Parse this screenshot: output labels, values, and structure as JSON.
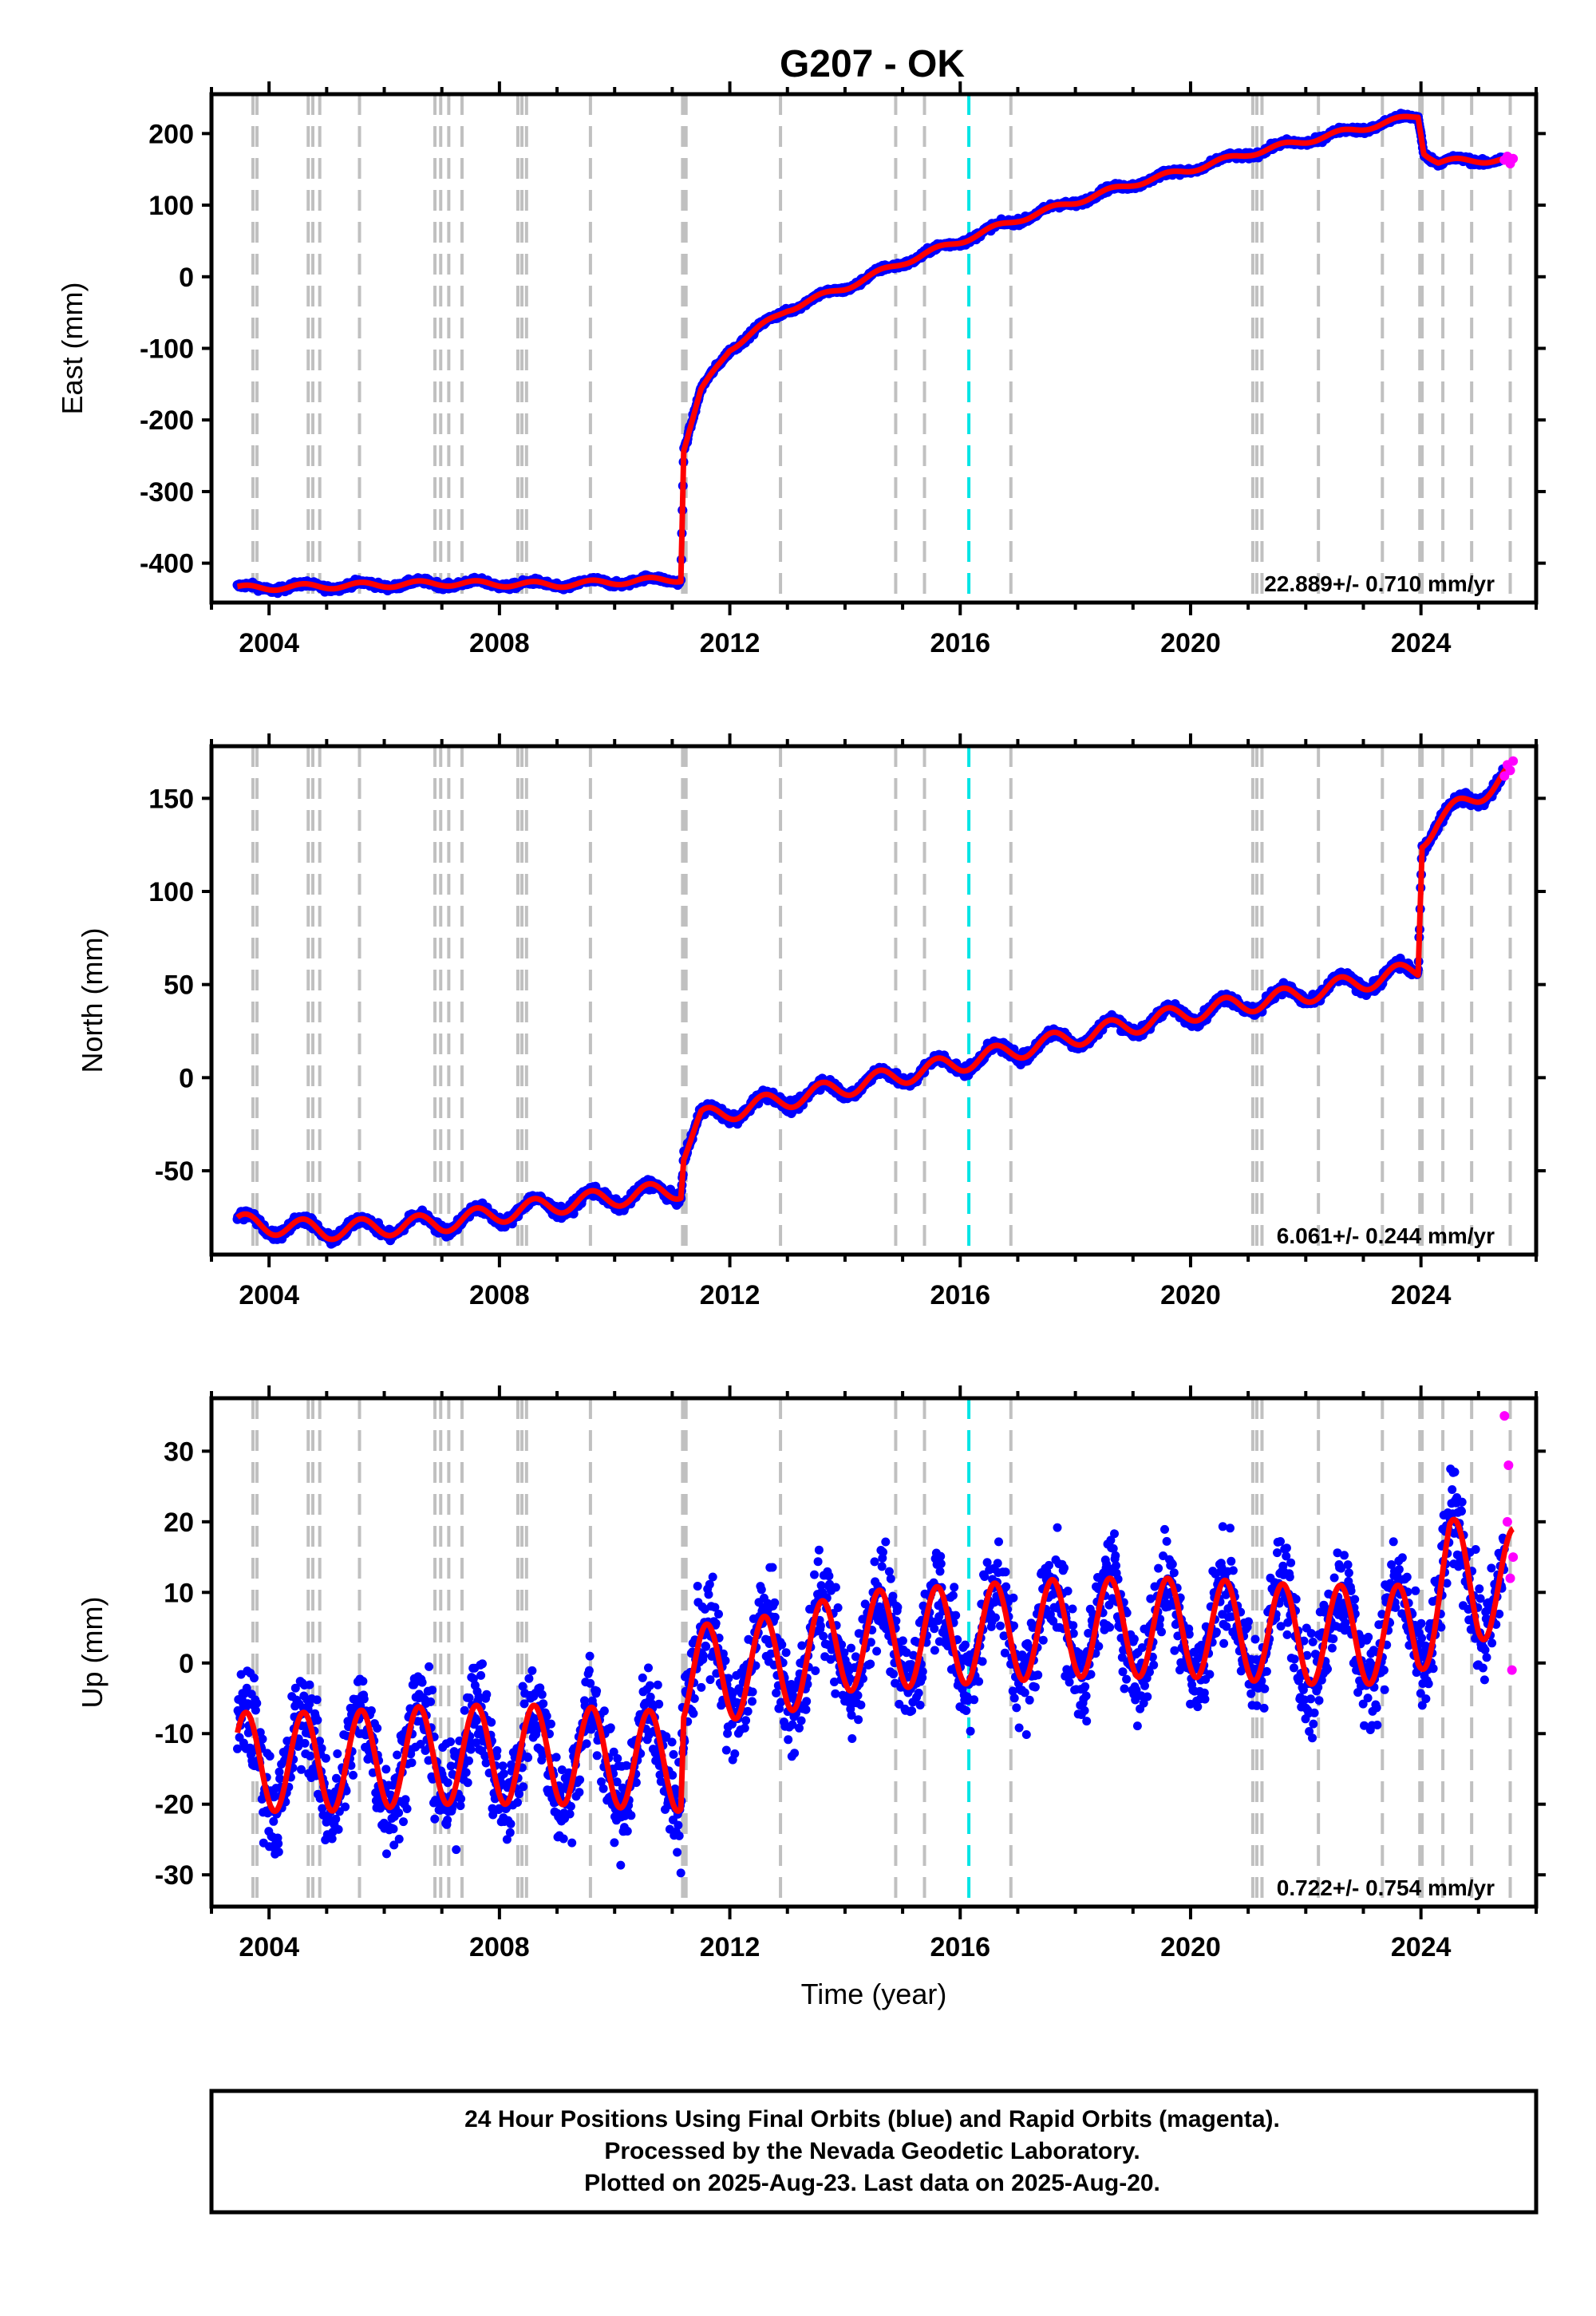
{
  "title": "G207 - OK",
  "footer": [
    "24 Hour Positions Using Final Orbits (blue) and Rapid Orbits (magenta).",
    "Processed by the Nevada Geodetic Laboratory.",
    "Plotted on 2025-Aug-23. Last data on 2025-Aug-20."
  ],
  "colors": {
    "final_orbits": "#0000ff",
    "rapid_orbits": "#ff00ff",
    "model": "#ff0000",
    "equipment_change": "#c0c0c0",
    "marker_2016": "#00e5e5"
  },
  "chart_data": [
    {
      "type": "scatter",
      "name": "east",
      "ylabel": "East (mm)",
      "xlabel": "",
      "xlim": [
        2003.0,
        2026.0
      ],
      "ylim": [
        -455,
        255
      ],
      "yticks": [
        -400,
        -300,
        -200,
        -100,
        0,
        100,
        200
      ],
      "xticks": [
        2004,
        2008,
        2012,
        2016,
        2020,
        2024
      ],
      "rate_label": "22.889+/- 0.710 mm/yr",
      "model_x": [
        2003.5,
        2005.0,
        2007.0,
        2009.0,
        2011.15,
        2011.2,
        2011.5,
        2012.0,
        2013.0,
        2014.0,
        2015.0,
        2016.0,
        2017.0,
        2018.0,
        2019.0,
        2020.0,
        2021.0,
        2022.0,
        2023.0,
        2023.95,
        2024.05,
        2024.3,
        2025.0,
        2025.6
      ],
      "model_y": [
        -435,
        -432,
        -428,
        -430,
        -422,
        -240,
        -160,
        -100,
        -45,
        -15,
        20,
        50,
        80,
        105,
        130,
        150,
        172,
        190,
        208,
        225,
        175,
        160,
        163,
        163
      ],
      "seasonal_amp": 4,
      "noise": 3,
      "rapid_x": [
        2025.45,
        2025.5,
        2025.55,
        2025.6
      ],
      "rapid_y": [
        163,
        168,
        158,
        165
      ]
    },
    {
      "type": "scatter",
      "name": "north",
      "ylabel": "North (mm)",
      "xlabel": "",
      "xlim": [
        2003.0,
        2026.0
      ],
      "ylim": [
        -95,
        178
      ],
      "yticks": [
        -50,
        0,
        50,
        100,
        150
      ],
      "xticks": [
        2004,
        2008,
        2012,
        2016,
        2020,
        2024
      ],
      "rate_label": "6.061+/- 0.244 mm/yr",
      "model_x": [
        2003.5,
        2005.0,
        2007.0,
        2009.0,
        2011.15,
        2011.2,
        2011.5,
        2012.0,
        2014.0,
        2016.0,
        2018.0,
        2020.0,
        2022.0,
        2023.95,
        2024.02,
        2024.3,
        2025.0,
        2025.6
      ],
      "model_y": [
        -78,
        -82,
        -78,
        -68,
        -60,
        -40,
        -22,
        -18,
        -5,
        8,
        22,
        35,
        45,
        58,
        128,
        138,
        152,
        165
      ],
      "seasonal_amp": 5,
      "noise": 2,
      "rapid_x": [
        2025.45,
        2025.5,
        2025.55,
        2025.6
      ],
      "rapid_y": [
        162,
        168,
        165,
        170
      ]
    },
    {
      "type": "scatter",
      "name": "up",
      "ylabel": "Up (mm)",
      "xlabel": "Time (year)",
      "xlim": [
        2003.0,
        2026.0
      ],
      "ylim": [
        -34.5,
        37.5
      ],
      "yticks": [
        -30,
        -20,
        -10,
        0,
        10,
        20,
        30
      ],
      "xticks": [
        2004,
        2008,
        2012,
        2016,
        2020,
        2024
      ],
      "rate_label": "0.722+/- 0.754 mm/yr",
      "model_x": [
        2003.5,
        2005.0,
        2007.0,
        2009.0,
        2011.15,
        2011.2,
        2012.0,
        2013.0,
        2014.0,
        2016.0,
        2018.0,
        2020.0,
        2022.0,
        2023.95,
        2024.5,
        2025.0,
        2025.6
      ],
      "model_y": [
        -14,
        -14,
        -13,
        -13,
        -14,
        -2,
        -1,
        0,
        3,
        4,
        5,
        5,
        4,
        4,
        14,
        10,
        12
      ],
      "seasonal_amp": 7,
      "noise": 5,
      "rapid_x": [
        2025.45,
        2025.5,
        2025.52,
        2025.55,
        2025.58,
        2025.6
      ],
      "rapid_y": [
        35,
        20,
        28,
        12,
        -1,
        15
      ]
    }
  ],
  "equipment_change_years": [
    2003.72,
    2003.79,
    2004.68,
    2004.76,
    2004.88,
    2005.57,
    2006.88,
    2006.98,
    2007.12,
    2007.35,
    2008.32,
    2008.39,
    2008.47,
    2009.58,
    2011.18,
    2011.21,
    2011.24,
    2012.88,
    2014.88,
    2015.38,
    2016.88,
    2021.08,
    2021.15,
    2021.24,
    2022.22,
    2023.33,
    2023.98,
    2024.02,
    2024.38,
    2024.88,
    2025.55
  ],
  "marker_2016_year": 2016.15
}
